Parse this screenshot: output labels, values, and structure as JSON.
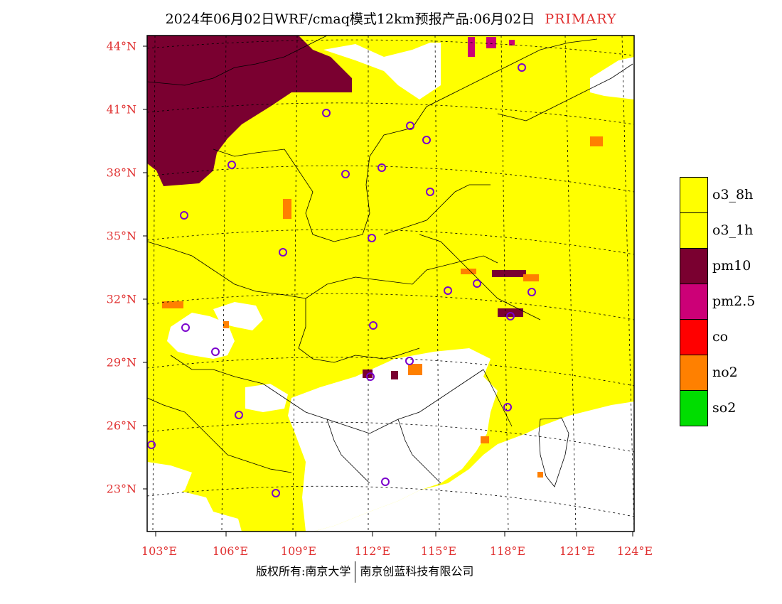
{
  "header": {
    "title": "2024年06月02日WRF/cmaq模式12km预报产品:06月02日",
    "tag": "PRIMARY"
  },
  "axes": {
    "lat_labels": [
      "44°N",
      "41°N",
      "38°N",
      "35°N",
      "32°N",
      "29°N",
      "26°N",
      "23°N"
    ],
    "lon_labels": [
      "103°E",
      "106°E",
      "109°E",
      "112°E",
      "115°E",
      "118°E",
      "121°E",
      "124°E"
    ]
  },
  "legend": {
    "items": [
      {
        "label": "o3_8h",
        "color": "#ffff00"
      },
      {
        "label": "o3_1h",
        "color": "#ffff00"
      },
      {
        "label": "pm10",
        "color": "#7a0030"
      },
      {
        "label": "pm2.5",
        "color": "#cc0077"
      },
      {
        "label": "co",
        "color": "#ff0000"
      },
      {
        "label": "no2",
        "color": "#ff8000"
      },
      {
        "label": "so2",
        "color": "#00dd00"
      }
    ]
  },
  "colors": {
    "o3": "#ffff00",
    "pm10": "#7a0030",
    "pm25": "#cc0077",
    "no2": "#ff8000",
    "station": "#7a00cc",
    "axis_label": "#e03030"
  },
  "footer": {
    "copyright": "版权所有:南京大学",
    "company": "南京创蓝科技有限公司"
  }
}
